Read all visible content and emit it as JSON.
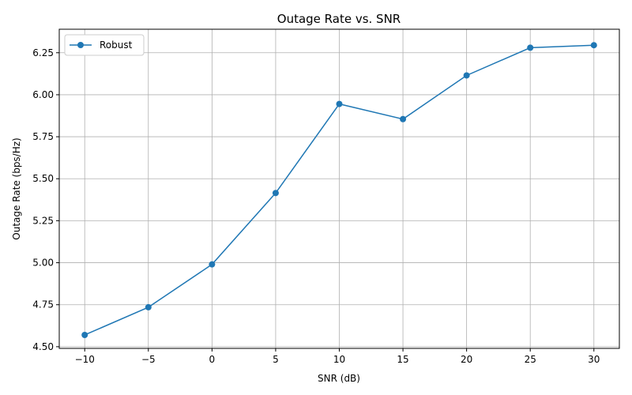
{
  "chart_data": {
    "type": "line",
    "title": "Outage Rate vs. SNR",
    "xlabel": "SNR (dB)",
    "ylabel": "Outage Rate (bps/Hz)",
    "x": [
      -10,
      -5,
      0,
      5,
      10,
      15,
      20,
      25,
      30
    ],
    "series": [
      {
        "name": "Robust",
        "color": "#1f77b4",
        "marker": "circle",
        "values": [
          4.57,
          4.735,
          4.99,
          5.415,
          5.945,
          5.855,
          6.115,
          6.28,
          6.295
        ]
      }
    ],
    "xlim": [
      -12,
      32
    ],
    "ylim": [
      4.49,
      6.39
    ],
    "xticks": [
      -10,
      -5,
      0,
      5,
      10,
      15,
      20,
      25,
      30
    ],
    "xtick_labels": [
      "−10",
      "−5",
      "0",
      "5",
      "10",
      "15",
      "20",
      "25",
      "30"
    ],
    "yticks": [
      4.5,
      4.75,
      5.0,
      5.25,
      5.5,
      5.75,
      6.0,
      6.25
    ],
    "ytick_labels": [
      "4.50",
      "4.75",
      "5.00",
      "5.25",
      "5.50",
      "5.75",
      "6.00",
      "6.25"
    ],
    "grid": true,
    "legend_position": "top-left"
  }
}
